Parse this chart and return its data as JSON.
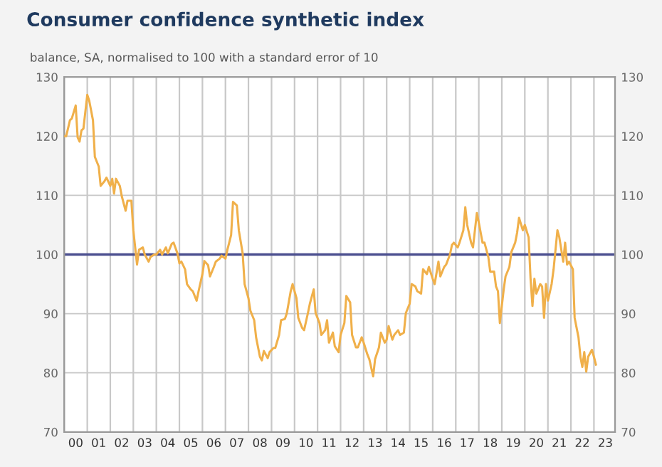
{
  "chart_data": {
    "type": "line",
    "title": "Consumer confidence synthetic index",
    "subtitle": "balance, SA, normalised to 100 with a standard error of 10",
    "series": [
      {
        "color": "#f0b04a",
        "x": [
          "2000-01",
          "2000-02",
          "2000-04",
          "2000-05",
          "2000-07",
          "2000-08",
          "2000-09",
          "2000-10",
          "2000-11",
          "2001-01",
          "2001-02",
          "2001-04",
          "2001-05",
          "2001-07",
          "2001-08",
          "2001-10",
          "2001-11",
          "2002-01",
          "2002-02",
          "2002-03",
          "2002-04",
          "2002-06",
          "2002-07",
          "2002-09",
          "2002-10",
          "2002-12",
          "2003-01",
          "2003-03",
          "2003-04",
          "2003-06",
          "2003-07",
          "2003-09",
          "2003-10",
          "2003-12",
          "2004-01",
          "2004-03",
          "2004-04",
          "2004-06",
          "2004-07",
          "2004-09",
          "2004-10",
          "2004-12",
          "2005-01",
          "2005-02",
          "2005-04",
          "2005-05",
          "2005-07",
          "2005-08",
          "2005-10",
          "2005-11",
          "2006-01",
          "2006-02",
          "2006-04",
          "2006-05",
          "2006-07",
          "2006-08",
          "2006-10",
          "2006-11",
          "2007-01",
          "2007-02",
          "2007-04",
          "2007-05",
          "2007-07",
          "2007-08",
          "2007-10",
          "2007-11",
          "2008-01",
          "2008-02",
          "2008-04",
          "2008-05",
          "2008-07",
          "2008-08",
          "2008-09",
          "2008-11",
          "2008-12",
          "2009-02",
          "2009-03",
          "2009-05",
          "2009-06",
          "2009-08",
          "2009-09",
          "2009-11",
          "2009-12",
          "2010-02",
          "2010-03",
          "2010-05",
          "2010-06",
          "2010-08",
          "2010-09",
          "2010-11",
          "2010-12",
          "2011-02",
          "2011-03",
          "2011-05",
          "2011-06",
          "2011-07",
          "2011-09",
          "2011-10",
          "2011-12",
          "2012-01",
          "2012-03",
          "2012-04",
          "2012-06",
          "2012-07",
          "2012-09",
          "2012-10",
          "2012-12",
          "2013-01",
          "2013-03",
          "2013-04",
          "2013-06",
          "2013-07",
          "2013-09",
          "2013-10",
          "2013-12",
          "2014-01",
          "2014-02",
          "2014-04",
          "2014-05",
          "2014-07",
          "2014-08",
          "2014-10",
          "2014-11",
          "2015-01",
          "2015-02",
          "2015-04",
          "2015-05",
          "2015-07",
          "2015-08",
          "2015-10",
          "2015-11",
          "2016-01",
          "2016-02",
          "2016-04",
          "2016-05",
          "2016-07",
          "2016-08",
          "2016-10",
          "2016-11",
          "2016-12",
          "2017-02",
          "2017-03",
          "2017-05",
          "2017-06",
          "2017-07",
          "2017-09",
          "2017-10",
          "2017-12",
          "2018-01",
          "2018-03",
          "2018-04",
          "2018-06",
          "2018-07",
          "2018-09",
          "2018-10",
          "2018-11",
          "2018-12",
          "2019-02",
          "2019-03",
          "2019-05",
          "2019-06",
          "2019-08",
          "2019-09",
          "2019-10",
          "2019-12",
          "2020-01",
          "2020-03",
          "2020-04",
          "2020-05",
          "2020-06",
          "2020-07",
          "2020-09",
          "2020-10",
          "2020-11",
          "2020-12",
          "2021-01",
          "2021-03",
          "2021-04",
          "2021-06",
          "2021-07",
          "2021-09",
          "2021-10",
          "2021-11",
          "2021-12",
          "2022-02",
          "2022-03",
          "2022-05",
          "2022-06",
          "2022-07",
          "2022-08",
          "2022-09",
          "2022-10",
          "2022-12",
          "2023-01",
          "2023-02"
        ],
        "values": [
          120,
          120,
          122.7,
          123,
          125.2,
          119.8,
          119.1,
          121,
          121.3,
          127,
          126,
          122.7,
          116.5,
          114.9,
          111.6,
          112.4,
          113,
          111.6,
          112.8,
          110.3,
          112.8,
          111.6,
          109.9,
          107.4,
          109.1,
          109.1,
          104.1,
          98.3,
          100.8,
          101.2,
          100,
          98.8,
          99.6,
          100,
          100,
          100.8,
          100,
          101.2,
          100.2,
          101.8,
          102,
          100.2,
          98.5,
          98.8,
          97.5,
          95,
          94.1,
          93.8,
          92.2,
          93.8,
          96.7,
          98.9,
          98.2,
          96.3,
          97.9,
          98.8,
          99.3,
          99.8,
          99.3,
          100.8,
          103.3,
          108.9,
          108.3,
          104.1,
          100.2,
          95,
          92.6,
          90.5,
          88.9,
          86,
          82.7,
          82.1,
          83.7,
          82.5,
          83.5,
          84.2,
          84.2,
          86.4,
          88.9,
          89.1,
          90.1,
          93.8,
          95,
          92.6,
          89.3,
          87.6,
          87.2,
          90.1,
          91.7,
          94.1,
          90.1,
          88.4,
          86.4,
          87.2,
          88.9,
          85.1,
          86.8,
          84.5,
          83.5,
          86.4,
          88.4,
          93,
          91.9,
          86.4,
          84.3,
          84.3,
          86,
          85.1,
          83.1,
          82.3,
          79.4,
          82.3,
          84.3,
          86.8,
          85.1,
          85.6,
          87.9,
          85.6,
          86.4,
          87.2,
          86.4,
          86.8,
          90.1,
          91.7,
          95,
          94.6,
          93.8,
          93.4,
          97.5,
          96.7,
          97.9,
          95.9,
          95,
          98.8,
          96.3,
          97.9,
          98.3,
          100,
          101.6,
          102,
          101.2,
          102,
          104.1,
          108,
          105,
          102,
          101.2,
          107,
          105.4,
          102,
          102,
          99.6,
          97.1,
          97.1,
          94.6,
          93.8,
          88.4,
          94.2,
          96.3,
          97.9,
          100.4,
          102,
          103.7,
          106.2,
          104.1,
          105,
          102.9,
          95.9,
          91.3,
          95.9,
          93.4,
          95,
          94.6,
          89.3,
          95,
          92.2,
          95,
          97.5,
          104.1,
          102.9,
          98.8,
          102,
          98.3,
          98.8,
          97.5,
          89.3,
          86,
          82.7,
          81,
          83.5,
          80.2,
          82.7,
          83.9,
          82.7,
          81.4
        ]
      }
    ],
    "xlim": [
      "2000-01-01",
      "2023-12-01"
    ],
    "xticks": [
      {
        "value": "2000-01-01",
        "label": null
      },
      {
        "value": "2000-07-01",
        "label": "00"
      },
      {
        "value": "2001-01-01",
        "label": null
      },
      {
        "value": "2001-07-01",
        "label": "01"
      },
      {
        "value": "2002-01-01",
        "label": null
      },
      {
        "value": "2002-07-01",
        "label": "02"
      },
      {
        "value": "2003-01-01",
        "label": null
      },
      {
        "value": "2003-07-01",
        "label": "03"
      },
      {
        "value": "2004-01-01",
        "label": null
      },
      {
        "value": "2004-07-01",
        "label": "04"
      },
      {
        "value": "2005-01-01",
        "label": null
      },
      {
        "value": "2005-07-01",
        "label": "05"
      },
      {
        "value": "2006-01-01",
        "label": null
      },
      {
        "value": "2006-07-01",
        "label": "06"
      },
      {
        "value": "2007-01-01",
        "label": null
      },
      {
        "value": "2007-07-01",
        "label": "07"
      },
      {
        "value": "2008-01-01",
        "label": null
      },
      {
        "value": "2008-07-01",
        "label": "08"
      },
      {
        "value": "2009-01-01",
        "label": null
      },
      {
        "value": "2009-07-01",
        "label": "09"
      },
      {
        "value": "2010-01-01",
        "label": null
      },
      {
        "value": "2010-07-01",
        "label": "10"
      },
      {
        "value": "2011-01-01",
        "label": null
      },
      {
        "value": "2011-07-01",
        "label": "11"
      },
      {
        "value": "2012-01-01",
        "label": null
      },
      {
        "value": "2012-07-01",
        "label": "12"
      },
      {
        "value": "2013-01-01",
        "label": null
      },
      {
        "value": "2013-07-01",
        "label": "13"
      },
      {
        "value": "2014-01-01",
        "label": null
      },
      {
        "value": "2014-07-01",
        "label": "14"
      },
      {
        "value": "2015-01-01",
        "label": null
      },
      {
        "value": "2015-07-01",
        "label": "15"
      },
      {
        "value": "2016-01-01",
        "label": null
      },
      {
        "value": "2016-07-01",
        "label": "16"
      },
      {
        "value": "2017-01-01",
        "label": null
      },
      {
        "value": "2017-07-01",
        "label": "17"
      },
      {
        "value": "2018-01-01",
        "label": null
      },
      {
        "value": "2018-07-01",
        "label": "18"
      },
      {
        "value": "2019-01-01",
        "label": null
      },
      {
        "value": "2019-07-01",
        "label": "19"
      },
      {
        "value": "2020-01-01",
        "label": null
      },
      {
        "value": "2020-07-01",
        "label": "20"
      },
      {
        "value": "2021-01-01",
        "label": null
      },
      {
        "value": "2021-07-01",
        "label": "21"
      },
      {
        "value": "2022-01-01",
        "label": null
      },
      {
        "value": "2022-07-01",
        "label": "22"
      },
      {
        "value": "2023-01-01",
        "label": null
      },
      {
        "value": "2023-07-01",
        "label": "23"
      }
    ],
    "ylim": [
      70,
      130
    ],
    "yticks": [
      70,
      80,
      90,
      100,
      110,
      120,
      130
    ],
    "y2lim": [
      70,
      130
    ],
    "y2ticks": [
      70,
      80,
      90,
      100,
      110,
      120,
      130
    ],
    "ref_lines": [
      {
        "axis": "y",
        "value": 100,
        "label": null,
        "color": "#4b4f8f"
      }
    ],
    "grid": true
  }
}
